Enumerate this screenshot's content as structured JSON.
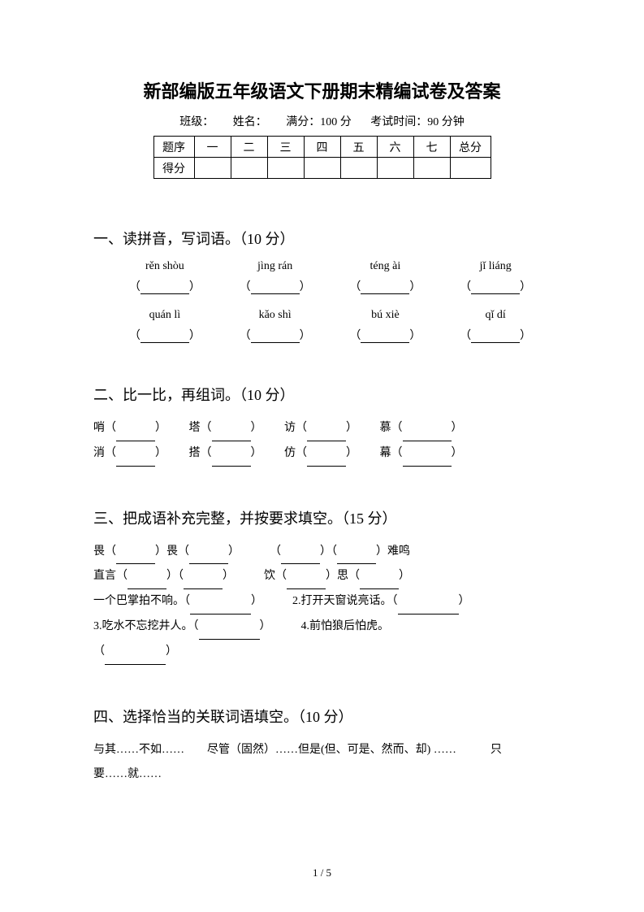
{
  "title": "新部编版五年级语文下册期末精编试卷及答案",
  "info": {
    "class_label": "班级：",
    "name_label": "姓名：",
    "full_label": "满分：",
    "full_value": "100 分",
    "time_label": "考试时间：",
    "time_value": "90 分钟"
  },
  "score_table": {
    "row1": [
      "题序",
      "一",
      "二",
      "三",
      "四",
      "五",
      "六",
      "七",
      "总分"
    ],
    "row2_label": "得分"
  },
  "section1": {
    "heading": "一、读拼音，写词语。（10 分）",
    "pinyin_row1": [
      "rěn shòu",
      "jìng rán",
      "téng ài",
      "jǐ liáng"
    ],
    "pinyin_row2": [
      "quán lì",
      "kǎo shì",
      "bú xiè",
      "qǐ dí"
    ]
  },
  "section2": {
    "heading": "二、比一比，再组词。（10 分）",
    "pairs": [
      [
        "哨",
        "塔",
        "访",
        "慕"
      ],
      [
        "消",
        "搭",
        "仿",
        "幕"
      ]
    ]
  },
  "section3": {
    "heading": "三、把成语补充完整，并按要求填空。（15 分）",
    "l1a": "畏（",
    "l1b": "）畏（",
    "l1c": "）",
    "l1d": "（",
    "l1e": "）（",
    "l1f": "）难鸣",
    "l2a": "直言（",
    "l2b": "）（",
    "l2c": "）",
    "l2d": "饮（",
    "l2e": "）思（",
    "l2f": "）",
    "l3a": "一个巴掌拍不响。（",
    "l3b": "）",
    "l3c": "2.打开天窗说亮话。（",
    "l3d": "）",
    "l4a": "3.吃水不忘挖井人。（",
    "l4b": "）",
    "l4c": "4.前怕狼后怕虎。",
    "l5a": "（",
    "l5b": "）"
  },
  "section4": {
    "heading": "四、选择恰当的关联词语填空。（10 分）",
    "line1": "与其……不如……　　尽管（固然）……但是(但、可是、然而、却) ……　　　只",
    "line2": "要……就……"
  },
  "page_num": "1 / 5"
}
